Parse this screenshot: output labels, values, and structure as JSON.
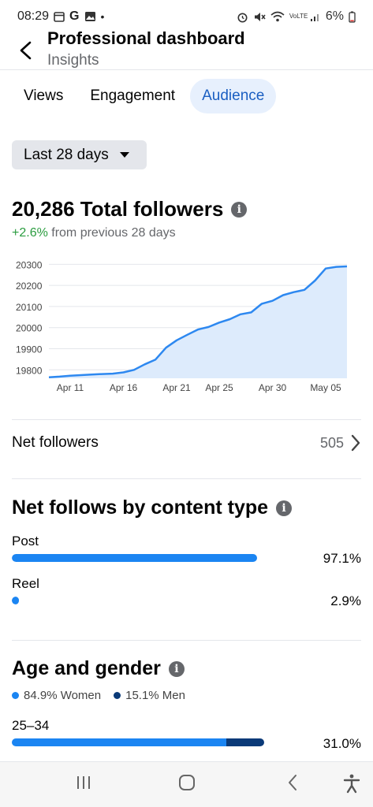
{
  "status_bar": {
    "time": "08:29",
    "icons_left": [
      "calendar-icon",
      "g-icon",
      "image-icon",
      "dot-icon"
    ],
    "icons_right": [
      "alarm-icon",
      "mute-icon",
      "wifi-icon",
      "volte-icon",
      "signal-icon"
    ],
    "volte_text": "VoLTE",
    "battery": "6%"
  },
  "header": {
    "title": "Professional dashboard",
    "subtitle": "Insights"
  },
  "tabs": [
    {
      "label": "Views",
      "active": false
    },
    {
      "label": "Engagement",
      "active": false
    },
    {
      "label": "Audience",
      "active": true
    }
  ],
  "range": {
    "label": "Last 28 days"
  },
  "followers": {
    "title": "20,286 Total followers",
    "change": "+2.6%",
    "change_suffix": " from previous 28 days"
  },
  "chart_data": {
    "type": "area",
    "xlabel": "",
    "ylabel": "",
    "ylim": [
      19760,
      20320
    ],
    "y_ticks": [
      19800,
      19900,
      20000,
      20100,
      20200,
      20300
    ],
    "x_tick_labels": [
      "Apr 11",
      "Apr 16",
      "Apr 21",
      "Apr 25",
      "Apr 30",
      "May 05"
    ],
    "x_tick_indices": [
      2,
      7,
      12,
      16,
      21,
      26
    ],
    "series": [
      {
        "values": [
          19765,
          19768,
          19772,
          19775,
          19778,
          19780,
          19782,
          19788,
          19800,
          19826,
          19848,
          19905,
          19940,
          19966,
          19991,
          20003,
          20024,
          20040,
          20063,
          20072,
          20113,
          20127,
          20154,
          20168,
          20179,
          20223,
          20280,
          20288,
          20290
        ]
      }
    ],
    "colors": {
      "line": "#2d88f0",
      "fill": "#ddebfc",
      "grid": "#e4e6eb"
    },
    "grid": true
  },
  "net_followers": {
    "label": "Net followers",
    "value": "505"
  },
  "content_type": {
    "title": "Net follows by content type",
    "items": [
      {
        "label": "Post",
        "percent": "97.1%",
        "fraction": 0.971
      },
      {
        "label": "Reel",
        "percent": "2.9%",
        "fraction": 0.029
      }
    ]
  },
  "age_gender": {
    "title": "Age and gender",
    "women": "84.9% Women",
    "men": "15.1% Men",
    "women_color": "#1b85f2",
    "men_color": "#0b3a78",
    "rows": [
      {
        "label": "25–34",
        "percent": "31.0%",
        "fraction_women": 0.849,
        "fraction_men": 0.151
      }
    ]
  },
  "nav_bar": [
    "recents-icon",
    "home-icon",
    "back-icon",
    "accessibility-icon"
  ]
}
